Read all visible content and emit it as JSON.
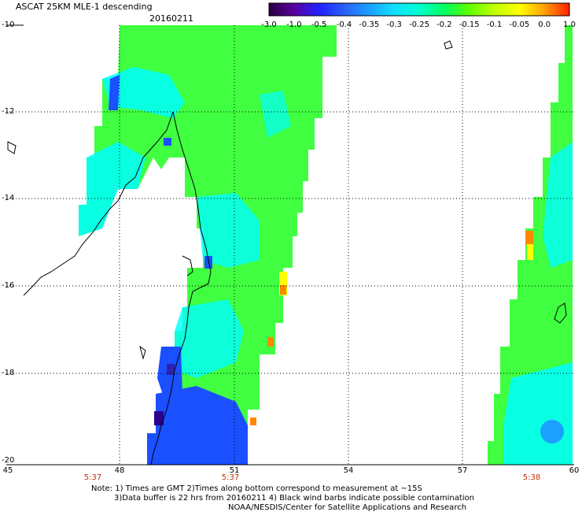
{
  "header": {
    "title": "ASCAT 25KM MLE-1 descending",
    "date": "20160211"
  },
  "colorbar": {
    "labels": [
      "-3.0",
      "-1.0",
      "-0.5",
      "-0.4",
      "-0.35",
      "-0.3",
      "-0.25",
      "-0.2",
      "-0.15",
      "-0.1",
      "-0.05",
      "0.0",
      "1.0"
    ],
    "colors": [
      "#2a0040",
      "#5a00a0",
      "#2020ff",
      "#2a60ff",
      "#1aa0ff",
      "#10e0ff",
      "#00ffd0",
      "#00ff60",
      "#60ff00",
      "#c0ff00",
      "#ffff00",
      "#ffa000",
      "#ff2000"
    ]
  },
  "axes": {
    "y_ticks": [
      "-10",
      "-12",
      "-14",
      "-16",
      "-18",
      "-20"
    ],
    "x_ticks": [
      "45",
      "48",
      "51",
      "54",
      "57",
      "60"
    ]
  },
  "time_labels": [
    "5:37",
    "5:37",
    "5:38"
  ],
  "notes": {
    "line1": "Note: 1) Times are GMT 2)Times along bottom correspond to measurement at ~15S",
    "line2": "3)Data buffer is 22 hrs from 20160211 4) Black wind barbs indicate possible contamination",
    "line3": "NOAA/NESDIS/Center for Satellite Applications and Research"
  },
  "colors": {
    "swath_main": "#40ff40",
    "cyan": "#00ffff",
    "blue": "#1a50ff",
    "highlight": "#ff8800"
  }
}
